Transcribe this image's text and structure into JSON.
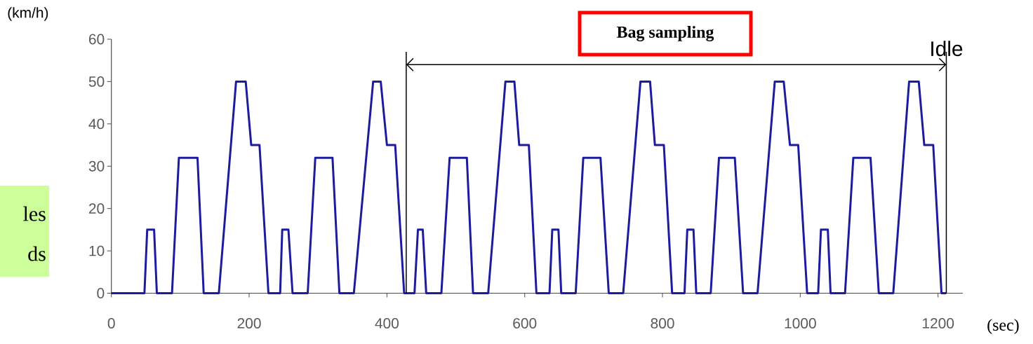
{
  "chart_data": {
    "type": "line",
    "xlabel": "(sec)",
    "ylabel": "(km/h)",
    "x": [
      0,
      48,
      52,
      62,
      66,
      88,
      98,
      125,
      134,
      156,
      181,
      195,
      203,
      215,
      228,
      245,
      248,
      257,
      263,
      285,
      296,
      321,
      331,
      352,
      380,
      391,
      400,
      412,
      425,
      440,
      445,
      452,
      457,
      479,
      491,
      516,
      525,
      547,
      572,
      585,
      592,
      606,
      617,
      636,
      640,
      649,
      653,
      674,
      685,
      710,
      722,
      743,
      768,
      782,
      789,
      802,
      814,
      832,
      836,
      845,
      849,
      870,
      882,
      905,
      917,
      938,
      963,
      976,
      985,
      997,
      1010,
      1026,
      1030,
      1040,
      1044,
      1065,
      1077,
      1102,
      1114,
      1135,
      1158,
      1172,
      1180,
      1193,
      1205,
      1212
    ],
    "series": [
      {
        "color": "#1c1c9c",
        "values": [
          0,
          0,
          15,
          15,
          0,
          0,
          32,
          32,
          0,
          0,
          50,
          50,
          35,
          35,
          0,
          0,
          15,
          15,
          0,
          0,
          32,
          32,
          0,
          0,
          50,
          50,
          35,
          35,
          0,
          0,
          15,
          15,
          0,
          0,
          32,
          32,
          0,
          0,
          50,
          50,
          35,
          35,
          0,
          0,
          15,
          15,
          0,
          0,
          32,
          32,
          0,
          0,
          50,
          50,
          35,
          35,
          0,
          0,
          15,
          15,
          0,
          0,
          32,
          32,
          0,
          0,
          50,
          50,
          35,
          35,
          0,
          0,
          15,
          15,
          0,
          0,
          32,
          32,
          0,
          0,
          50,
          50,
          35,
          35,
          0,
          0
        ]
      }
    ],
    "xlim": [
      0,
      1236
    ],
    "ylim": [
      0,
      60
    ],
    "xticks": [
      0,
      200,
      400,
      600,
      800,
      1000,
      1200
    ],
    "yticks": [
      0,
      10,
      20,
      30,
      40,
      50,
      60
    ],
    "ref_lines": [
      {
        "axis": "x",
        "value": 428
      },
      {
        "axis": "x",
        "value": 1212,
        "label": "Idle"
      }
    ],
    "annotations": [
      "Bag sampling",
      "les",
      "ds"
    ]
  }
}
